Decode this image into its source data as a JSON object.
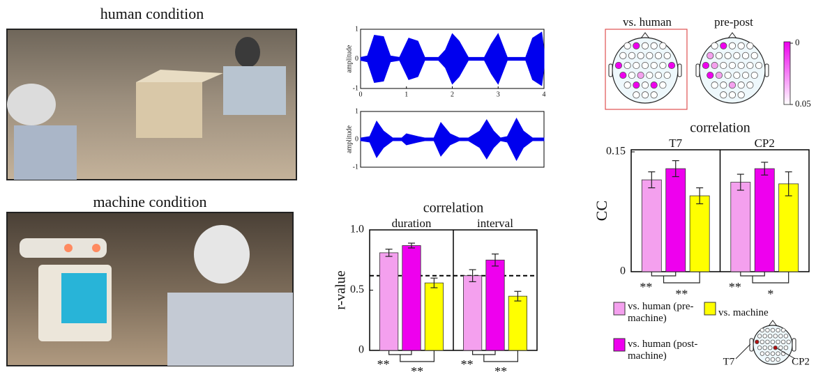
{
  "photos": [
    {
      "title": "human condition"
    },
    {
      "title": "machine condition"
    }
  ],
  "chart_data": [
    {
      "type": "area",
      "ylabel": "amplitude",
      "color": "#0000ee",
      "xlim": [
        0,
        4
      ],
      "xticks": [
        0,
        1,
        2,
        3,
        4
      ],
      "ylim": [
        -1,
        1
      ],
      "yticks": [
        1,
        0,
        -1
      ],
      "x": [
        0,
        0.15,
        0.3,
        0.5,
        0.65,
        0.85,
        1.05,
        1.25,
        1.4,
        1.7,
        1.85,
        2.0,
        2.15,
        2.35,
        2.7,
        2.85,
        3.0,
        3.2,
        3.6,
        3.75,
        3.95,
        4.0
      ],
      "values": [
        0.05,
        0.1,
        0.8,
        0.75,
        0.1,
        0.05,
        0.7,
        0.6,
        0.05,
        0.05,
        0.3,
        0.85,
        0.6,
        0.05,
        0.05,
        0.5,
        0.85,
        0.05,
        0.05,
        0.7,
        0.9,
        0.3
      ]
    },
    {
      "type": "area",
      "ylabel": "amplitude",
      "color": "#0000ee",
      "xlim": [
        0,
        4
      ],
      "ylim": [
        -1,
        1
      ],
      "yticks": [
        1,
        0,
        -1
      ],
      "x": [
        0,
        0.2,
        0.35,
        0.5,
        0.7,
        0.9,
        1.0,
        1.25,
        1.4,
        1.6,
        1.75,
        1.95,
        2.15,
        2.35,
        2.6,
        2.75,
        2.9,
        3.05,
        3.2,
        3.4,
        3.55,
        3.75,
        4.0
      ],
      "values": [
        0.05,
        0.1,
        0.65,
        0.3,
        0.05,
        0.05,
        0.2,
        0.1,
        0.05,
        0.05,
        0.6,
        0.2,
        0.05,
        0.05,
        0.3,
        0.7,
        0.3,
        0.05,
        0.1,
        0.75,
        0.3,
        0.05,
        0.05
      ]
    },
    {
      "type": "bar",
      "title": "correlation",
      "ylabel": "r-value",
      "categories": [
        "duration",
        "interval"
      ],
      "ylim": [
        0,
        1
      ],
      "yticks": [
        0,
        0.5,
        {
          "value": 1,
          "label": "1.0"
        }
      ],
      "reference_line": 0.62,
      "series": [
        {
          "values": [
            0.81,
            0.62
          ],
          "errors": [
            0.03,
            0.05
          ]
        },
        {
          "values": [
            0.87,
            0.75
          ],
          "errors": [
            0.02,
            0.05
          ]
        },
        {
          "values": [
            0.56,
            0.45
          ],
          "errors": [
            0.04,
            0.04
          ]
        }
      ],
      "significance": [
        [
          "**",
          "**"
        ],
        [
          "**",
          "**"
        ]
      ]
    },
    {
      "type": "bar",
      "title": "correlation",
      "ylabel": "CC",
      "categories": [
        "T7",
        "CP2"
      ],
      "ylim": [
        0,
        0.15
      ],
      "yticks": [
        0,
        0.15
      ],
      "series": [
        {
          "values": [
            0.115,
            0.112
          ],
          "errors": [
            0.01,
            0.01
          ]
        },
        {
          "values": [
            0.129,
            0.129
          ],
          "errors": [
            0.01,
            0.008
          ]
        },
        {
          "values": [
            0.095,
            0.11
          ],
          "errors": [
            0.01,
            0.015
          ]
        }
      ],
      "significance": [
        [
          "**",
          "**"
        ],
        [
          "**",
          "*"
        ]
      ]
    }
  ],
  "topomaps": {
    "labels": [
      "vs. human",
      "pre-post"
    ],
    "colorbar_ticks": [
      0,
      0.05
    ]
  },
  "legend": [
    {
      "name": "vs. human (pre-machine)",
      "color": "#f4a0ee"
    },
    {
      "name": "vs. human (post-machine)",
      "color": "#ee00ee"
    },
    {
      "name": "vs. machine",
      "color": "#ffff00"
    }
  ],
  "electrode_labels": [
    "T7",
    "CP2"
  ]
}
